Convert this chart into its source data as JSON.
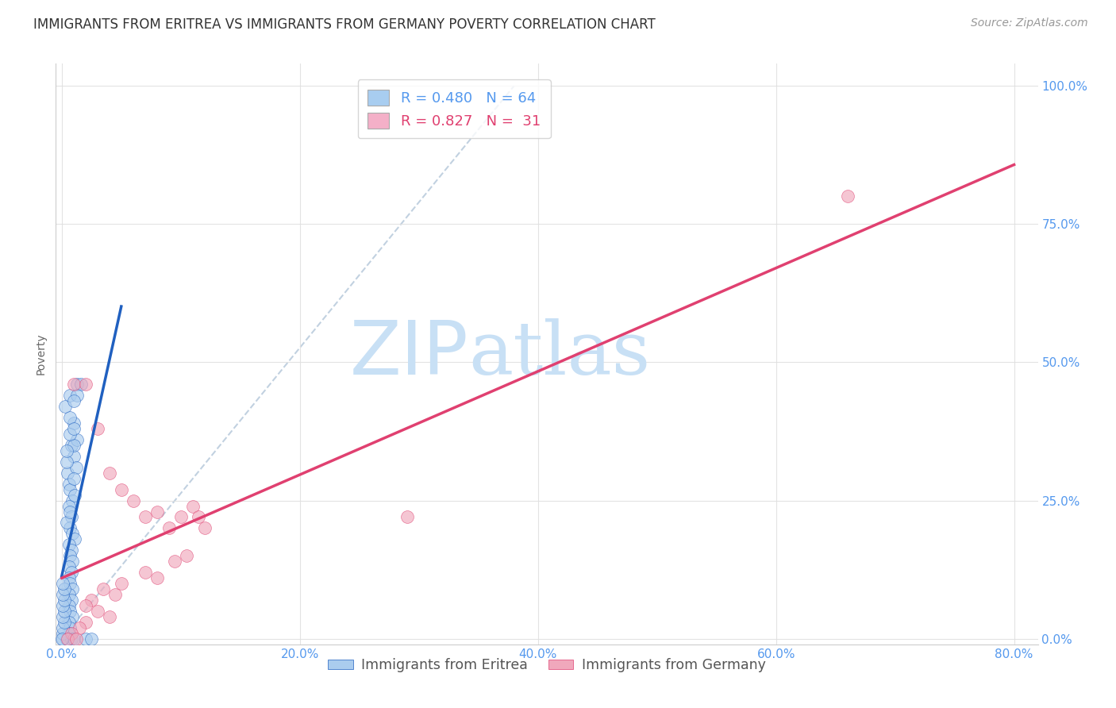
{
  "title": "IMMIGRANTS FROM ERITREA VS IMMIGRANTS FROM GERMANY POVERTY CORRELATION CHART",
  "source": "Source: ZipAtlas.com",
  "ylabel": "Poverty",
  "x_tick_labels": [
    "0.0%",
    "",
    "",
    "",
    "",
    "20.0%",
    "",
    "",
    "",
    "",
    "40.0%",
    "",
    "",
    "",
    "",
    "60.0%",
    "",
    "",
    "",
    "",
    "80.0%"
  ],
  "x_tick_values": [
    0.0,
    0.04,
    0.08,
    0.12,
    0.16,
    0.2,
    0.24,
    0.28,
    0.32,
    0.36,
    0.4,
    0.44,
    0.48,
    0.52,
    0.56,
    0.6,
    0.64,
    0.68,
    0.72,
    0.76,
    0.8
  ],
  "x_tick_labels_sparse": [
    "0.0%",
    "20.0%",
    "40.0%",
    "60.0%",
    "80.0%"
  ],
  "x_tick_values_sparse": [
    0.0,
    0.2,
    0.4,
    0.6,
    0.8
  ],
  "y_tick_labels": [
    "0.0%",
    "25.0%",
    "50.0%",
    "75.0%",
    "100.0%"
  ],
  "y_tick_values": [
    0.0,
    0.25,
    0.5,
    0.75,
    1.0
  ],
  "xlim": [
    -0.005,
    0.82
  ],
  "ylim": [
    -0.01,
    1.04
  ],
  "legend_entries": [
    {
      "label": "Immigrants from Eritrea",
      "color": "#a8cdf0",
      "R": 0.48,
      "N": 64
    },
    {
      "label": "Immigrants from Germany",
      "color": "#f4b0c8",
      "R": 0.827,
      "N": 31
    }
  ],
  "background_color": "#ffffff",
  "grid_color": "#e0e0e0",
  "watermark_zip": "ZIP",
  "watermark_atlas": "atlas",
  "watermark_color_zip": "#c8e0f5",
  "watermark_color_atlas": "#c8e0f5",
  "title_fontsize": 12,
  "axis_label_fontsize": 10,
  "tick_fontsize": 11,
  "tick_color": "#5599ee",
  "eritrea_scatter": [
    [
      0.005,
      0.3
    ],
    [
      0.008,
      0.35
    ],
    [
      0.01,
      0.33
    ],
    [
      0.006,
      0.28
    ],
    [
      0.012,
      0.31
    ],
    [
      0.007,
      0.27
    ],
    [
      0.009,
      0.25
    ],
    [
      0.011,
      0.26
    ],
    [
      0.006,
      0.24
    ],
    [
      0.008,
      0.22
    ],
    [
      0.007,
      0.2
    ],
    [
      0.009,
      0.19
    ],
    [
      0.011,
      0.18
    ],
    [
      0.006,
      0.17
    ],
    [
      0.008,
      0.16
    ],
    [
      0.007,
      0.15
    ],
    [
      0.009,
      0.14
    ],
    [
      0.006,
      0.13
    ],
    [
      0.008,
      0.12
    ],
    [
      0.006,
      0.11
    ],
    [
      0.007,
      0.1
    ],
    [
      0.009,
      0.09
    ],
    [
      0.006,
      0.08
    ],
    [
      0.008,
      0.07
    ],
    [
      0.006,
      0.06
    ],
    [
      0.007,
      0.05
    ],
    [
      0.009,
      0.04
    ],
    [
      0.006,
      0.03
    ],
    [
      0.007,
      0.02
    ],
    [
      0.006,
      0.01
    ],
    [
      0.001,
      0.0
    ],
    [
      0.004,
      0.0
    ],
    [
      0.008,
      0.0
    ],
    [
      0.01,
      0.0
    ],
    [
      0.001,
      0.01
    ],
    [
      0.001,
      0.02
    ],
    [
      0.002,
      0.03
    ],
    [
      0.001,
      0.04
    ],
    [
      0.002,
      0.05
    ],
    [
      0.001,
      0.06
    ],
    [
      0.002,
      0.07
    ],
    [
      0.001,
      0.08
    ],
    [
      0.002,
      0.09
    ],
    [
      0.003,
      0.42
    ],
    [
      0.013,
      0.46
    ],
    [
      0.016,
      0.46
    ],
    [
      0.01,
      0.39
    ],
    [
      0.007,
      0.4
    ],
    [
      0.013,
      0.36
    ],
    [
      0.01,
      0.35
    ],
    [
      0.007,
      0.44
    ],
    [
      0.013,
      0.44
    ],
    [
      0.01,
      0.43
    ],
    [
      0.02,
      0.0
    ],
    [
      0.025,
      0.0
    ],
    [
      0.001,
      0.1
    ],
    [
      0.0,
      0.0
    ],
    [
      0.004,
      0.21
    ],
    [
      0.007,
      0.23
    ],
    [
      0.01,
      0.29
    ],
    [
      0.004,
      0.32
    ],
    [
      0.007,
      0.37
    ],
    [
      0.01,
      0.38
    ],
    [
      0.004,
      0.34
    ]
  ],
  "germany_scatter": [
    [
      0.01,
      0.46
    ],
    [
      0.02,
      0.46
    ],
    [
      0.03,
      0.38
    ],
    [
      0.04,
      0.3
    ],
    [
      0.05,
      0.27
    ],
    [
      0.06,
      0.25
    ],
    [
      0.07,
      0.22
    ],
    [
      0.08,
      0.23
    ],
    [
      0.09,
      0.2
    ],
    [
      0.1,
      0.22
    ],
    [
      0.11,
      0.24
    ],
    [
      0.115,
      0.22
    ],
    [
      0.12,
      0.2
    ],
    [
      0.105,
      0.15
    ],
    [
      0.095,
      0.14
    ],
    [
      0.07,
      0.12
    ],
    [
      0.08,
      0.11
    ],
    [
      0.05,
      0.1
    ],
    [
      0.035,
      0.09
    ],
    [
      0.045,
      0.08
    ],
    [
      0.025,
      0.07
    ],
    [
      0.02,
      0.06
    ],
    [
      0.03,
      0.05
    ],
    [
      0.04,
      0.04
    ],
    [
      0.02,
      0.03
    ],
    [
      0.015,
      0.02
    ],
    [
      0.008,
      0.01
    ],
    [
      0.005,
      0.0
    ],
    [
      0.012,
      0.0
    ],
    [
      0.66,
      0.8
    ],
    [
      0.29,
      0.22
    ]
  ],
  "eritrea_line_color": "#2060c0",
  "germany_line_color": "#e04070",
  "diagonal_color": "#bbccdd",
  "eritrea_dot_color": "#aaccee",
  "germany_dot_color": "#f0a8bc"
}
